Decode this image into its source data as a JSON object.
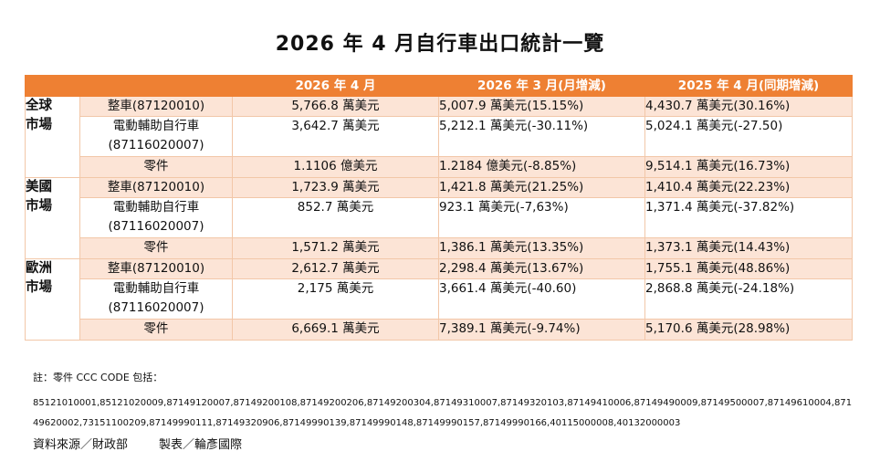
{
  "title": "2026 年 4 月自行車出口統計一覽",
  "headers": [
    "",
    "",
    "2026 年 4 月",
    "2026 年 3 月(月增減)",
    "2025 年 4 月(同期增減)"
  ],
  "regions": [
    {
      "name_line1": "全球",
      "name_line2": "市場",
      "rows": [
        {
          "item": "整車(87120010)",
          "item2": "",
          "v1": "5,766.8 萬美元",
          "v2": "5,007.9 萬美元(15.15%)",
          "v3": "4,430.7 萬美元(30.16%)"
        },
        {
          "item": "電動輔助自行車",
          "item2": "(87116020007)",
          "v1": "3,642.7 萬美元",
          "v2": "5,212.1 萬美元(-30.11%)",
          "v3": "5,024.1 萬美元(-27.50)"
        },
        {
          "item": "零件",
          "item2": "",
          "v1": "1.1106 億美元",
          "v2": "1.2184 億美元(-8.85%)",
          "v3": "9,514.1 萬美元(16.73%)"
        }
      ]
    },
    {
      "name_line1": "美國",
      "name_line2": "市場",
      "rows": [
        {
          "item": "整車(87120010)",
          "item2": "",
          "v1": "1,723.9 萬美元",
          "v2": "1,421.8 萬美元(21.25%)",
          "v3": "1,410.4 萬美元(22.23%)"
        },
        {
          "item": "電動輔助自行車",
          "item2": "(87116020007)",
          "v1": "852.7 萬美元",
          "v2": "923.1 萬美元(-7,63%)",
          "v3": "1,371.4 萬美元(-37.82%)"
        },
        {
          "item": "零件",
          "item2": "",
          "v1": "1,571.2 萬美元",
          "v2": "1,386.1 萬美元(13.35%)",
          "v3": "1,373.1 萬美元(14.43%)"
        }
      ]
    },
    {
      "name_line1": "歐洲",
      "name_line2": "市場",
      "rows": [
        {
          "item": "整車(87120010)",
          "item2": "",
          "v1": "2,612.7 萬美元",
          "v2": "2,298.4 萬美元(13.67%)",
          "v3": "1,755.1 萬美元(48.86%)"
        },
        {
          "item": "電動輔助自行車",
          "item2": "(87116020007)",
          "v1": "2,175 萬美元",
          "v2": "3,661.4 萬美元(-40.60)",
          "v3": "2,868.8 萬美元(-24.18%)"
        },
        {
          "item": "零件",
          "item2": "",
          "v1": "6,669.1 萬美元",
          "v2": "7,389.1 萬美元(-9.74%)",
          "v3": "5,170.6 萬美元(28.98%)"
        }
      ]
    }
  ],
  "note_label": "註：零件 CCC CODE 包括：",
  "codes": "85121010001,85121020009,87149120007,87149200108,87149200206,87149200304,87149310007,87149320103,87149410006,87149490009,87149500007,87149610004,87149620002,73151100209,87149990111,87149320906,87149990139,87149990148,87149990157,87149990166,40115000008,40132000003",
  "source": "資料來源／財政部",
  "maker": "製表／輪彥國際",
  "colors": {
    "header_bg": "#ee8033",
    "row_shade": "#fce4d6",
    "border": "#f2c7a8"
  }
}
